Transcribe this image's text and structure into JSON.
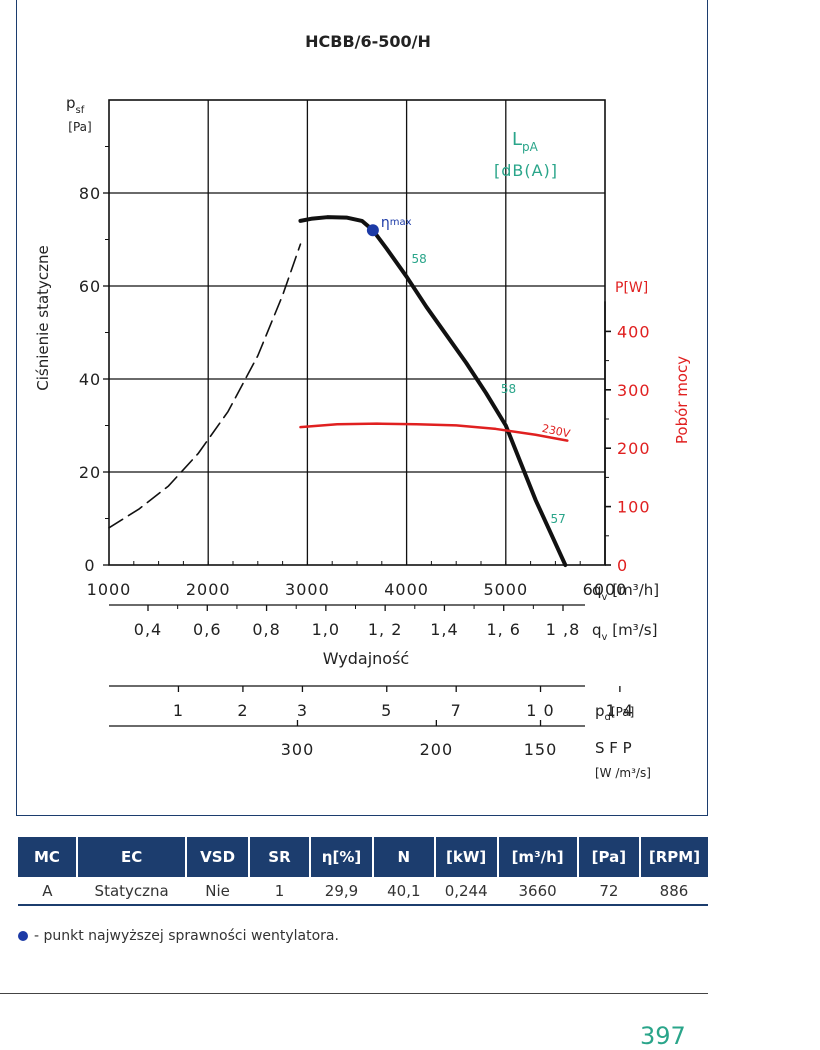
{
  "chart_data": {
    "type": "line",
    "title": "HCBB/6-500/H",
    "x_unit_label": "q",
    "x_unit_sub": "v",
    "x_unit_text": "[m³/h]",
    "x_ticks": [
      1000,
      2000,
      3000,
      4000,
      5000,
      6000
    ],
    "xlim": [
      1000,
      6000
    ],
    "x2_unit_text": "[m³/s]",
    "x2_ticks": [
      "0,4",
      "0,6",
      "0,8",
      "1,0",
      "1, 2",
      "1,4",
      "1, 6",
      "1 ,8"
    ],
    "x2_tick_values": [
      0.4,
      0.6,
      0.8,
      1.0,
      1.2,
      1.4,
      1.6,
      1.8
    ],
    "xlabel": "Wydajność",
    "ylabel": "Ciśnienie statyczne",
    "y_unit_label": "p",
    "y_unit_sub": "sf",
    "y_unit_text": "[Pa]",
    "ylim": [
      0,
      100
    ],
    "y_ticks": [
      0,
      20,
      40,
      60,
      80
    ],
    "y2_label": "Pobór mocy",
    "y2_unit_text": "P[W]",
    "y2_ticks": [
      0,
      100,
      200,
      300,
      400
    ],
    "y2lim": [
      0,
      400
    ],
    "lpa_label": "L",
    "lpa_sub": "pA",
    "lpa_unit": "[dB(A)]",
    "series": [
      {
        "role": "static-pressure",
        "color": "#111111",
        "x": [
          2930,
          3050,
          3200,
          3400,
          3550,
          3660,
          3800,
          4000,
          4200,
          4400,
          4600,
          4800,
          5000,
          5150,
          5300,
          5450,
          5600
        ],
        "y": [
          74,
          74.5,
          74.8,
          74.7,
          74,
          72,
          68,
          62,
          55.5,
          49.5,
          43.5,
          37,
          30,
          22,
          14,
          7,
          0
        ]
      },
      {
        "role": "stall-region",
        "color": "#111111",
        "dashed": true,
        "x": [
          1000,
          1300,
          1600,
          1900,
          2200,
          2500,
          2750,
          2930
        ],
        "y": [
          8,
          12,
          17,
          24,
          33,
          45,
          58,
          69
        ]
      },
      {
        "role": "power",
        "name": "230V",
        "color": "#e02020",
        "x": [
          2930,
          3300,
          3700,
          4100,
          4500,
          4900,
          5300,
          5620
        ],
        "y2": [
          236,
          241,
          242,
          241,
          239,
          233,
          223,
          213
        ]
      }
    ],
    "max_efficiency_point": {
      "x": 3660,
      "y": 72,
      "label": "η",
      "label_sub": "max",
      "color": "#1c3aa6"
    },
    "sound_labels": [
      {
        "text": "58",
        "x": 4050,
        "y": 65
      },
      {
        "text": "58",
        "x": 4950,
        "y": 37
      },
      {
        "text": "57",
        "x": 5450,
        "y": 9
      }
    ],
    "pd_scale": {
      "label": "p",
      "label_sub": "d",
      "unit": "[Pa]",
      "ticks": [
        "1",
        "2",
        "3",
        "5",
        "7",
        "1 0",
        "1 4"
      ],
      "tick_x": [
        1700,
        2350,
        2950,
        3800,
        4500,
        5350,
        6150
      ]
    },
    "sfp_scale": {
      "label": "S F P",
      "unit": "[W /m³/s]",
      "ticks": [
        "300",
        "200",
        "150"
      ],
      "tick_x": [
        2900,
        4300,
        5350
      ]
    }
  },
  "table": {
    "headers": [
      "MC",
      "EC",
      "VSD",
      "SR",
      "η[%]",
      "N",
      "[kW]",
      "[m³/h]",
      "[Pa]",
      "[RPM]"
    ],
    "row": [
      "A",
      "Statyczna",
      "Nie",
      "1",
      "29,9",
      "40,1",
      "0,244",
      "3660",
      "72",
      "886"
    ]
  },
  "legend_note": "- punkt najwyższej sprawności wentylatora.",
  "page_number": "397",
  "colors": {
    "frame": "#1c3d6e",
    "sound": "#2aa58a",
    "power": "#e02020",
    "max_point": "#1c3aa6"
  }
}
